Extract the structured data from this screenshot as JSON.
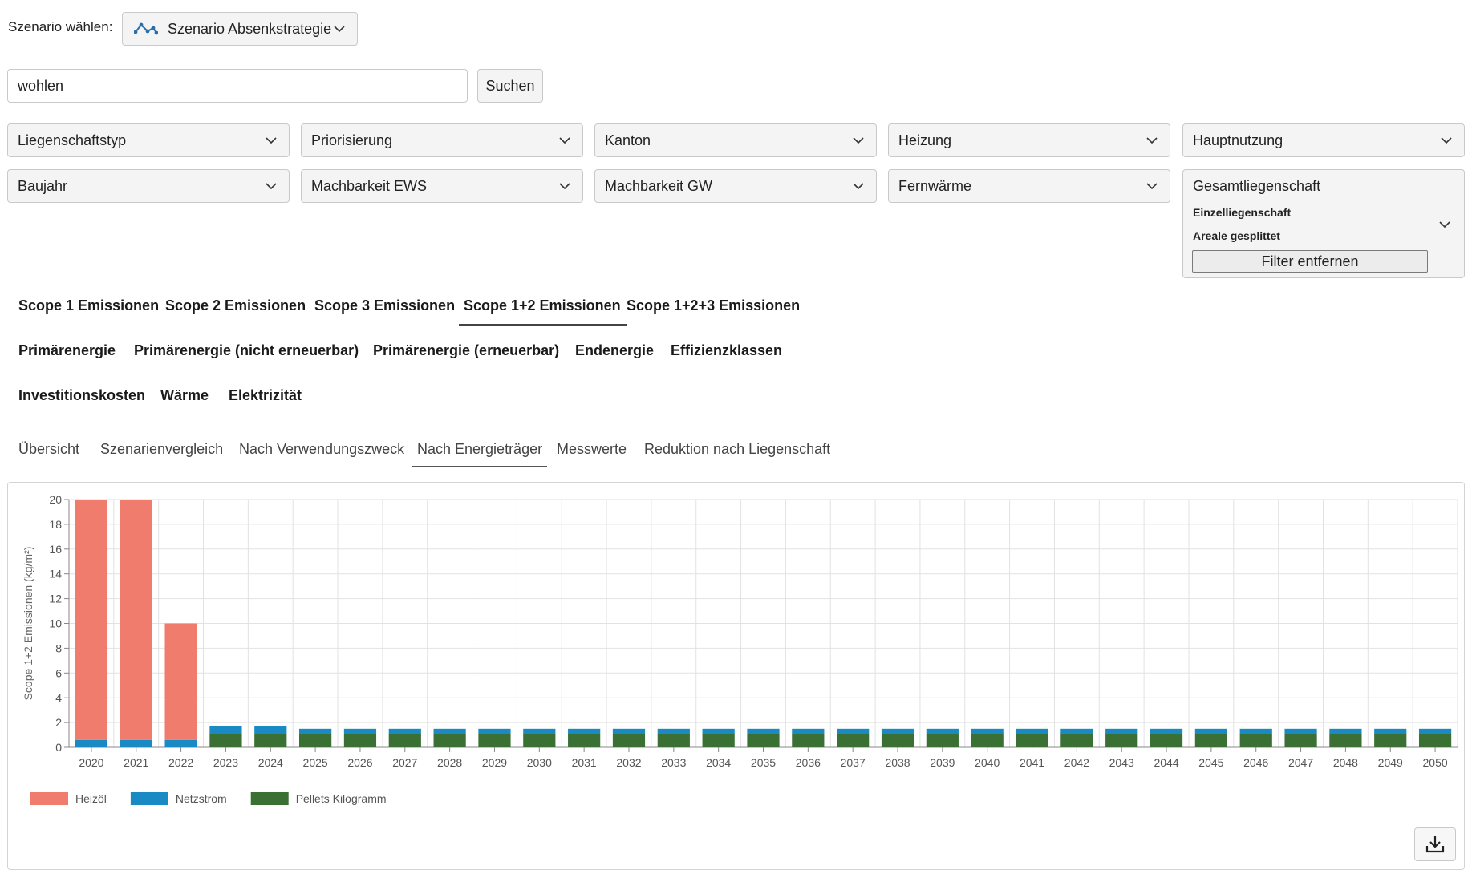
{
  "scenario": {
    "label": "Szenario wählen:",
    "selected": "Szenario Absenkstrategie",
    "icon": "line-chart-icon"
  },
  "search": {
    "value": "wohlen",
    "button_label": "Suchen"
  },
  "filters": {
    "row1": [
      "Liegenschaftstyp",
      "Priorisierung",
      "Kanton",
      "Heizung",
      "Hauptnutzung"
    ],
    "row2": [
      "Baujahr",
      "Machbarkeit EWS",
      "Machbarkeit GW",
      "Fernwärme"
    ]
  },
  "aggregation": {
    "options": [
      "Gesamtliegenschaft",
      "Einzelliegenschaft",
      "Areale gesplittet"
    ],
    "remove_label": "Filter entfernen"
  },
  "metric_tabs": {
    "row1": [
      "Scope 1 Emissionen",
      "Scope 2 Emissionen",
      "Scope 3 Emissionen",
      "Scope 1+2 Emissionen",
      "Scope 1+2+3 Emissionen"
    ],
    "row2": [
      "Primärenergie",
      "Primärenergie (nicht erneuerbar)",
      "Primärenergie (erneuerbar)",
      "Endenergie",
      "Effizienzklassen"
    ],
    "row3": [
      "Investitionskosten",
      "Wärme",
      "Elektrizität"
    ],
    "active": "Scope 1+2 Emissionen"
  },
  "view_tabs": {
    "items": [
      "Übersicht",
      "Szenarienvergleich",
      "Nach Verwendungszweck",
      "Nach Energieträger",
      "Messwerte",
      "Reduktion nach Liegenschaft"
    ],
    "active": "Nach Energieträger"
  },
  "chart_data": {
    "type": "bar",
    "stacked": true,
    "ylabel": "Scope 1+2 Emissionen (kg/m²)",
    "ylim": [
      0,
      20
    ],
    "yticks": [
      0,
      2,
      4,
      6,
      8,
      10,
      12,
      14,
      16,
      18,
      20
    ],
    "grid": true,
    "legend": "bottom-left",
    "categories": [
      "2020",
      "2021",
      "2022",
      "2023",
      "2024",
      "2025",
      "2026",
      "2027",
      "2028",
      "2029",
      "2030",
      "2031",
      "2032",
      "2033",
      "2034",
      "2035",
      "2036",
      "2037",
      "2038",
      "2039",
      "2040",
      "2041",
      "2042",
      "2043",
      "2044",
      "2045",
      "2046",
      "2047",
      "2048",
      "2049",
      "2050"
    ],
    "series": [
      {
        "name": "Pellets Kilogramm",
        "color": "#3a7034",
        "values": [
          0,
          0,
          0,
          1.1,
          1.1,
          1.1,
          1.1,
          1.1,
          1.1,
          1.1,
          1.1,
          1.1,
          1.1,
          1.1,
          1.1,
          1.1,
          1.1,
          1.1,
          1.1,
          1.1,
          1.1,
          1.1,
          1.1,
          1.1,
          1.1,
          1.1,
          1.1,
          1.1,
          1.1,
          1.1,
          1.1
        ]
      },
      {
        "name": "Netzstrom",
        "color": "#1a8ac4",
        "values": [
          0.6,
          0.6,
          0.6,
          0.6,
          0.6,
          0.4,
          0.4,
          0.4,
          0.4,
          0.4,
          0.4,
          0.4,
          0.4,
          0.4,
          0.4,
          0.4,
          0.4,
          0.4,
          0.4,
          0.4,
          0.4,
          0.4,
          0.4,
          0.4,
          0.4,
          0.4,
          0.4,
          0.4,
          0.4,
          0.4,
          0.4
        ]
      },
      {
        "name": "Heizöl",
        "color": "#f07c6e",
        "values": [
          19.4,
          19.4,
          9.4,
          0,
          0,
          0,
          0,
          0,
          0,
          0,
          0,
          0,
          0,
          0,
          0,
          0,
          0,
          0,
          0,
          0,
          0,
          0,
          0,
          0,
          0,
          0,
          0,
          0,
          0,
          0,
          0
        ]
      }
    ],
    "legend_order": [
      "Heizöl",
      "Netzstrom",
      "Pellets Kilogramm"
    ]
  },
  "download": {
    "icon": "download-icon"
  }
}
